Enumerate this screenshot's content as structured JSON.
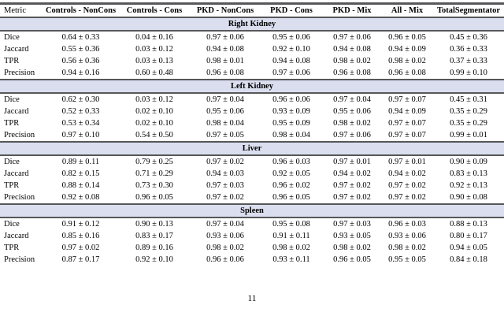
{
  "colors": {
    "band_bg": "#dadeee",
    "rule": "#57575a"
  },
  "page": {
    "page_number": "11"
  },
  "table": {
    "columns": [
      "Metric",
      "Controls - NonCons",
      "Controls - Cons",
      "PKD - NonCons",
      "PKD - Cons",
      "PKD - Mix",
      "All - Mix",
      "TotalSegmentator"
    ],
    "sections": [
      {
        "title": "Right Kidney",
        "rows": [
          {
            "metric": "Dice",
            "values": [
              "0.64 ± 0.33",
              "0.04 ± 0.16",
              "0.97 ± 0.06",
              "0.95 ± 0.06",
              "0.97 ± 0.06",
              "0.96 ± 0.05",
              "0.45 ± 0.36"
            ]
          },
          {
            "metric": "Jaccard",
            "values": [
              "0.55 ± 0.36",
              "0.03 ± 0.12",
              "0.94 ± 0.08",
              "0.92 ± 0.10",
              "0.94 ± 0.08",
              "0.94 ± 0.09",
              "0.36 ± 0.33"
            ]
          },
          {
            "metric": "TPR",
            "values": [
              "0.56 ± 0.36",
              "0.03 ± 0.13",
              "0.98 ± 0.01",
              "0.94 ± 0.08",
              "0.98 ± 0.02",
              "0.98 ± 0.02",
              "0.37 ± 0.33"
            ]
          },
          {
            "metric": "Precision",
            "values": [
              "0.94 ± 0.16",
              "0.60 ± 0.48",
              "0.96 ± 0.08",
              "0.97 ± 0.06",
              "0.96 ± 0.08",
              "0.96 ± 0.08",
              "0.99 ± 0.10"
            ]
          }
        ]
      },
      {
        "title": "Left Kidney",
        "rows": [
          {
            "metric": "Dice",
            "values": [
              "0.62 ± 0.30",
              "0.03 ± 0.12",
              "0.97 ± 0.04",
              "0.96 ± 0.06",
              "0.97 ± 0.04",
              "0.97 ± 0.07",
              "0.45 ± 0.31"
            ]
          },
          {
            "metric": "Jaccard",
            "values": [
              "0.52 ± 0.33",
              "0.02 ± 0.10",
              "0.95 ± 0.06",
              "0.93 ± 0.09",
              "0.95 ± 0.06",
              "0.94 ± 0.09",
              "0.35 ± 0.29"
            ]
          },
          {
            "metric": "TPR",
            "values": [
              "0.53 ± 0.34",
              "0.02 ± 0.10",
              "0.98 ± 0.04",
              "0.95 ± 0.09",
              "0.98 ± 0.02",
              "0.97 ± 0.07",
              "0.35 ± 0.29"
            ]
          },
          {
            "metric": "Precision",
            "values": [
              "0.97 ± 0.10",
              "0.54 ± 0.50",
              "0.97 ± 0.05",
              "0.98 ± 0.04",
              "0.97 ± 0.06",
              "0.97 ± 0.07",
              "0.99 ± 0.01"
            ]
          }
        ]
      },
      {
        "title": "Liver",
        "rows": [
          {
            "metric": "Dice",
            "values": [
              "0.89 ± 0.11",
              "0.79 ± 0.25",
              "0.97 ± 0.02",
              "0.96 ± 0.03",
              "0.97 ± 0.01",
              "0.97 ± 0.01",
              "0.90 ± 0.09"
            ]
          },
          {
            "metric": "Jaccard",
            "values": [
              "0.82 ± 0.15",
              "0.71 ± 0.29",
              "0.94 ± 0.03",
              "0.92 ± 0.05",
              "0.94 ± 0.02",
              "0.94 ± 0.02",
              "0.83 ± 0.13"
            ]
          },
          {
            "metric": "TPR",
            "values": [
              "0.88 ± 0.14",
              "0.73 ± 0.30",
              "0.97 ± 0.03",
              "0.96 ± 0.02",
              "0.97 ± 0.02",
              "0.97 ± 0.02",
              "0.92 ± 0.13"
            ]
          },
          {
            "metric": "Precision",
            "values": [
              "0.92 ± 0.08",
              "0.96 ± 0.05",
              "0.97 ± 0.02",
              "0.96 ± 0.05",
              "0.97 ± 0.02",
              "0.97 ± 0.02",
              "0.90 ± 0.08"
            ]
          }
        ]
      },
      {
        "title": "Spleen",
        "rows": [
          {
            "metric": "Dice",
            "values": [
              "0.91 ± 0.12",
              "0.90 ± 0.13",
              "0.97 ± 0.04",
              "0.95 ± 0.08",
              "0.97 ± 0.03",
              "0.96 ± 0.03",
              "0.88 ± 0.13"
            ]
          },
          {
            "metric": "Jaccard",
            "values": [
              "0.85 ± 0.16",
              "0.83 ± 0.17",
              "0.93 ± 0.06",
              "0.91 ± 0.11",
              "0.93 ± 0.05",
              "0.93 ± 0.06",
              "0.80 ± 0.17"
            ]
          },
          {
            "metric": "TPR",
            "values": [
              "0.97 ± 0.02",
              "0.89 ± 0.16",
              "0.98 ± 0.02",
              "0.98 ± 0.02",
              "0.98 ± 0.02",
              "0.98 ± 0.02",
              "0.94 ± 0.05"
            ]
          },
          {
            "metric": "Precision",
            "values": [
              "0.87 ± 0.17",
              "0.92 ± 0.10",
              "0.96 ± 0.06",
              "0.93 ± 0.11",
              "0.96 ± 0.05",
              "0.95 ± 0.05",
              "0.84 ± 0.18"
            ]
          }
        ]
      }
    ]
  }
}
